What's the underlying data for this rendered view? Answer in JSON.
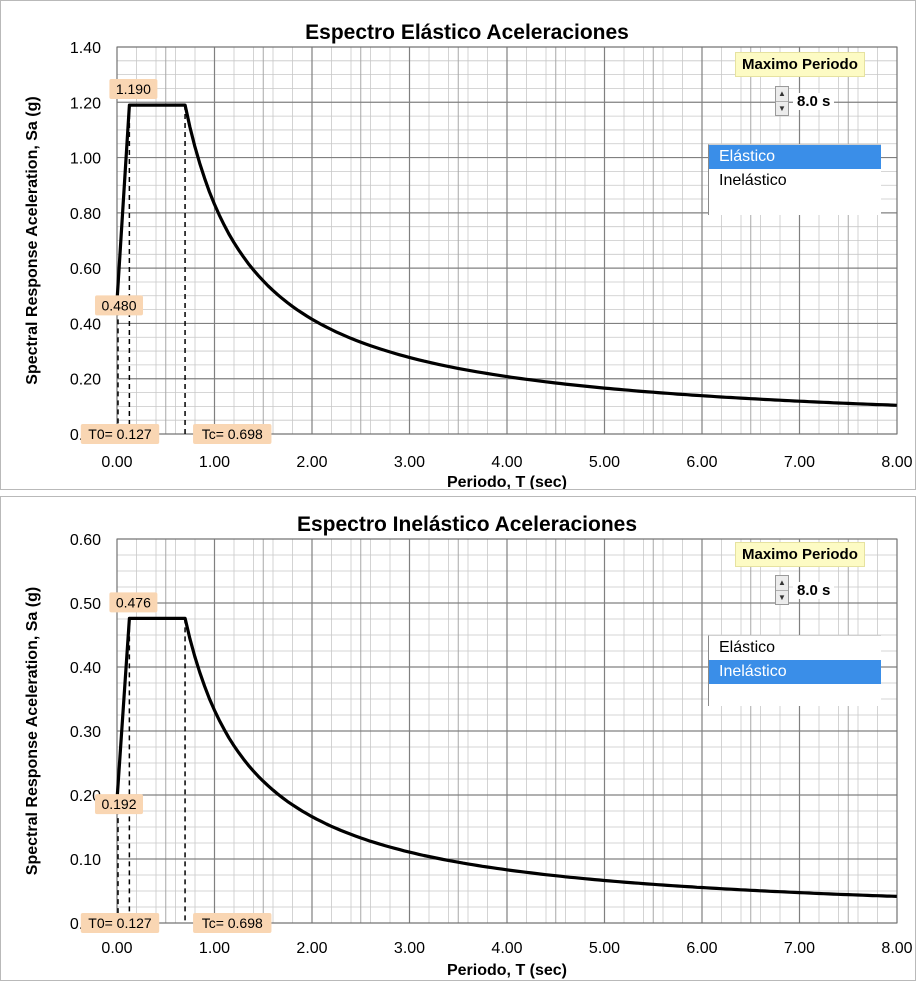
{
  "chart_data": [
    {
      "type": "line",
      "title": "Espectro Elástico Aceleraciones",
      "xlabel": "Periodo, T (sec)",
      "ylabel": "Spectral Response Aceleration, Sa (g)",
      "xlim": [
        0,
        8
      ],
      "ylim": [
        0,
        1.4
      ],
      "x_ticks": [
        "0.00",
        "1.00",
        "2.00",
        "3.00",
        "4.00",
        "5.00",
        "6.00",
        "7.00",
        "8.00"
      ],
      "y_ticks": [
        "0.00",
        "0.20",
        "0.40",
        "0.60",
        "0.80",
        "1.00",
        "1.20",
        "1.40"
      ],
      "grid": true,
      "series": [
        {
          "x": [
            0,
            0.127,
            0.698,
            0.8,
            1.0,
            1.25,
            1.5,
            2.0,
            2.5,
            3.0,
            3.5,
            4.0,
            4.5,
            5.0,
            5.5,
            6.0,
            6.5,
            7.0,
            7.5,
            8.0
          ],
          "y": [
            0.48,
            1.19,
            1.19,
            1.038,
            0.831,
            0.664,
            0.554,
            0.415,
            0.332,
            0.277,
            0.237,
            0.208,
            0.185,
            0.166,
            0.151,
            0.138,
            0.128,
            0.119,
            0.111,
            0.104
          ]
        }
      ],
      "annotations": [
        "1.190",
        "0.480",
        "T0= 0.127",
        "Tc= 0.698"
      ],
      "guide_lines_x": [
        0.127,
        0.698
      ],
      "peak": 1.19,
      "start": 0.48
    },
    {
      "type": "line",
      "title": "Espectro Inelástico Aceleraciones",
      "xlabel": "Periodo, T (sec)",
      "ylabel": "Spectral Response Aceleration, Sa (g)",
      "xlim": [
        0,
        8
      ],
      "ylim": [
        0,
        0.6
      ],
      "x_ticks": [
        "0.00",
        "1.00",
        "2.00",
        "3.00",
        "4.00",
        "5.00",
        "6.00",
        "7.00",
        "8.00"
      ],
      "y_ticks": [
        "0.00",
        "0.10",
        "0.20",
        "0.30",
        "0.40",
        "0.50",
        "0.60"
      ],
      "grid": true,
      "series": [
        {
          "x": [
            0,
            0.127,
            0.698,
            0.8,
            1.0,
            1.25,
            1.5,
            2.0,
            2.5,
            3.0,
            3.5,
            4.0,
            4.5,
            5.0,
            5.5,
            6.0,
            6.5,
            7.0,
            7.5,
            8.0
          ],
          "y": [
            0.192,
            0.476,
            0.476,
            0.415,
            0.332,
            0.266,
            0.221,
            0.166,
            0.133,
            0.111,
            0.095,
            0.083,
            0.074,
            0.066,
            0.06,
            0.055,
            0.051,
            0.047,
            0.044,
            0.042
          ]
        }
      ],
      "annotations": [
        "0.476",
        "0.192",
        "T0= 0.127",
        "Tc= 0.698"
      ],
      "guide_lines_x": [
        0.127,
        0.698
      ],
      "peak": 0.476,
      "start": 0.192
    }
  ],
  "widgets": [
    {
      "max_period_title": "Maximo Periodo",
      "max_period_value": "8.0 s",
      "list_items": [
        "Elástico",
        "Inelástico"
      ],
      "selected_index": 0
    },
    {
      "max_period_title": "Maximo Periodo",
      "max_period_value": "8.0 s",
      "list_items": [
        "Elástico",
        "Inelástico"
      ],
      "selected_index": 1
    }
  ],
  "colors": {
    "line": "#000000",
    "grid": "#9a9a9a",
    "annotation_bg": "#f9d6b3",
    "selected_bg": "#3a8ee8",
    "title_bg": "#fdfbc4"
  }
}
